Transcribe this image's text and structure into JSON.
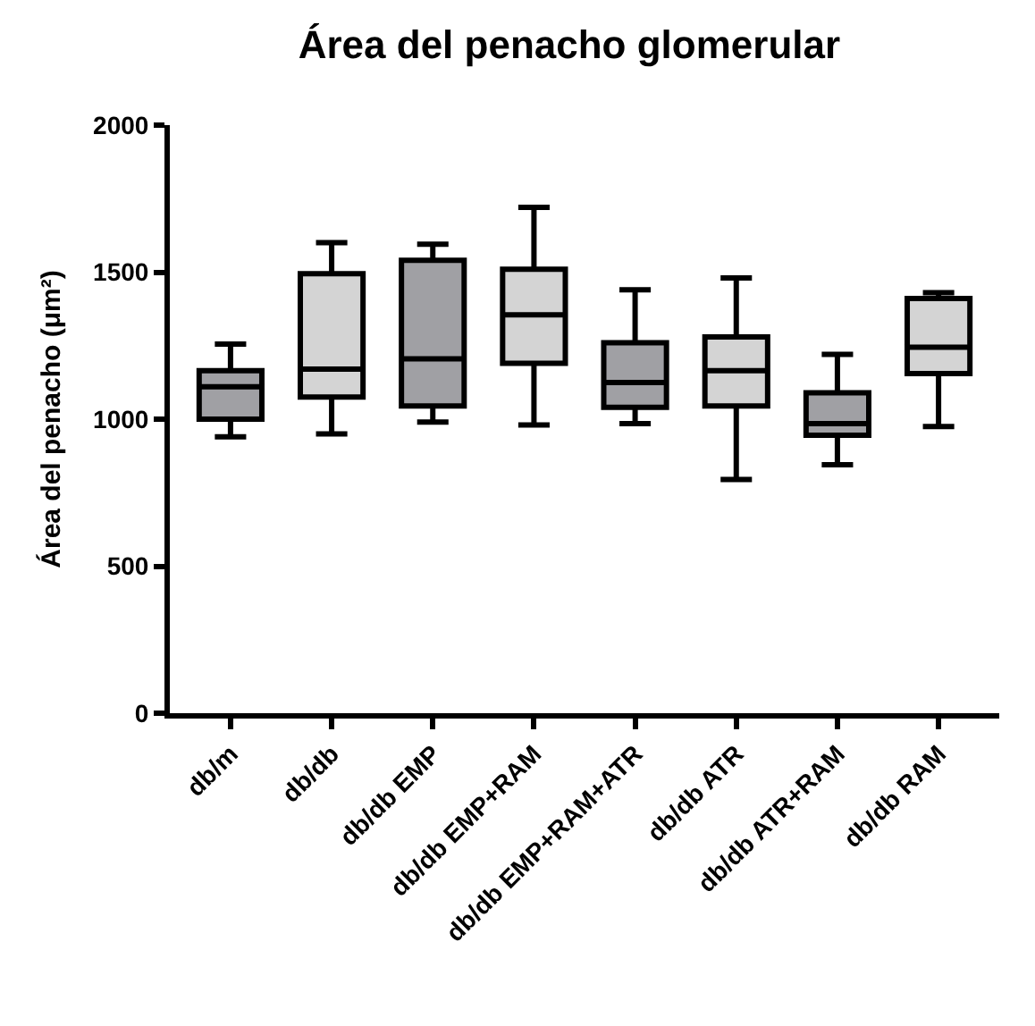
{
  "chart_data": {
    "type": "box",
    "title": "Área del penacho glomerular",
    "ylabel": "Área del penacho (μm²)",
    "categories": [
      "db/m",
      "db/db",
      "db/db EMP",
      "db/db EMP+RAM",
      "db/db EMP+RAM+ATR",
      "db/db ATR",
      "db/db ATR+RAM",
      "db/db RAM"
    ],
    "boxes": [
      {
        "low": 940,
        "q1": 1000,
        "median": 1110,
        "q3": 1165,
        "high": 1255
      },
      {
        "low": 950,
        "q1": 1075,
        "median": 1170,
        "q3": 1495,
        "high": 1600
      },
      {
        "low": 990,
        "q1": 1045,
        "median": 1205,
        "q3": 1540,
        "high": 1595
      },
      {
        "low": 980,
        "q1": 1190,
        "median": 1355,
        "q3": 1510,
        "high": 1720
      },
      {
        "low": 985,
        "q1": 1040,
        "median": 1125,
        "q3": 1260,
        "high": 1440
      },
      {
        "low": 795,
        "q1": 1045,
        "median": 1165,
        "q3": 1280,
        "high": 1480
      },
      {
        "low": 845,
        "q1": 945,
        "median": 985,
        "q3": 1090,
        "high": 1220
      },
      {
        "low": 975,
        "q1": 1155,
        "median": 1245,
        "q3": 1410,
        "high": 1430
      }
    ],
    "colors": [
      "#a0a0a4",
      "#d4d4d4",
      "#a0a0a4",
      "#d4d4d4",
      "#a0a0a4",
      "#d4d4d4",
      "#a0a0a4",
      "#d4d4d4"
    ],
    "ylim": [
      0,
      2000
    ],
    "yticks": [
      0,
      500,
      1000,
      1500,
      2000
    ]
  }
}
